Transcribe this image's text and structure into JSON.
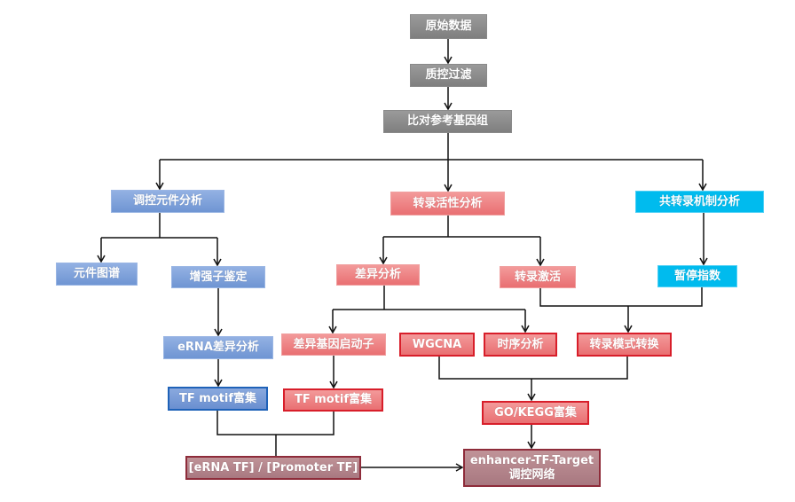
{
  "colors": {
    "gray": "#8c8c8c",
    "blue": "#7b9fd8",
    "blue_border": "#1f62b8",
    "red": "#ee7f80",
    "red_border": "#d81e2a",
    "cyan": "#00bbee",
    "maroon": "#b07f86",
    "maroon_border": "#8e2c3a",
    "line": "#111111"
  },
  "nodes": {
    "raw_data": "原始数据",
    "qc_filter": "质控过滤",
    "align_reference": "比对参考基因组",
    "regulatory_element_analysis": "调控元件分析",
    "element_map": "元件图谱",
    "enhancer_identification": "增强子鉴定",
    "erna_diff_analysis": "eRNA差异分析",
    "tf_motif_enrichment_enhancer": "TF motif富集",
    "transcription_activity_analysis": "转录活性分析",
    "diff_analysis": "差异分析",
    "diff_gene_promoter": "差异基因启动子",
    "tf_motif_enrichment_promoter": "TF motif富集",
    "transcription_activation": "转录激活",
    "wgcna": "WGCNA",
    "time_series_analysis": "时序分析",
    "transcription_mode_switch": "转录模式转换",
    "go_kegg_enrichment": "GO/KEGG富集",
    "cotranscription_mechanism_analysis": "共转录机制分析",
    "pausing_index": "暂停指数",
    "erna_promoter_tf": "[eRNA TF] / [Promoter TF]",
    "network_line1": "enhancer-TF-Target",
    "network_line2": "调控网络"
  }
}
